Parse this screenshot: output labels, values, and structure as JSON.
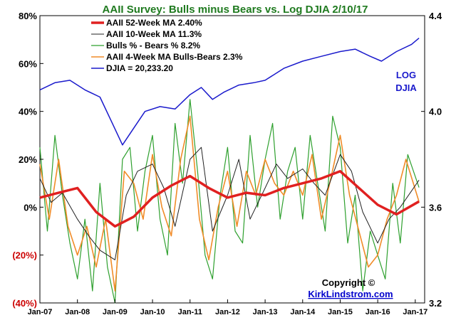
{
  "chart_data": {
    "type": "line",
    "title": "AAII Survey: Bulls minus Bears vs. Log DJIA  2/10/17",
    "x_ticks": [
      "Jan-07",
      "Jan-08",
      "Jan-09",
      "Jan-10",
      "Jan-11",
      "Jan-12",
      "Jan-13",
      "Jan-14",
      "Jan-15",
      "Jan-16",
      "Jan-17"
    ],
    "x_range": [
      2007.0,
      2017.25
    ],
    "y_left": {
      "ticks": [
        "80%",
        "60%",
        "40%",
        "20%",
        "0%",
        "(20%)",
        "(40%)"
      ],
      "values": [
        80,
        60,
        40,
        20,
        0,
        -20,
        -40
      ],
      "ylim": [
        -40,
        80
      ],
      "unit": "%"
    },
    "y_right": {
      "ticks": [
        "4.4",
        "4.0",
        "3.6",
        "3.2"
      ],
      "values": [
        4.4,
        4.0,
        3.6,
        3.2
      ],
      "ylim": [
        3.2,
        4.4
      ],
      "scale": "log"
    },
    "grid": false,
    "legend_placement": "top-left",
    "series": [
      {
        "name": "AAII 52-Week MA 2.40%",
        "color": "#e02020",
        "axis": "left",
        "x": [
          2007.0,
          2007.5,
          2008.0,
          2008.5,
          2009.0,
          2009.5,
          2010.0,
          2010.5,
          2011.0,
          2011.5,
          2012.0,
          2012.5,
          2013.0,
          2013.5,
          2014.0,
          2014.5,
          2015.0,
          2015.5,
          2016.0,
          2016.5,
          2017.1
        ],
        "y": [
          4,
          6,
          8,
          -2,
          -8,
          -4,
          4,
          9,
          13,
          8,
          4,
          6,
          5,
          8,
          10,
          12,
          15,
          8,
          1,
          -3,
          2.4
        ]
      },
      {
        "name": "AAII 10-Week MA 11.3%",
        "color": "#222222",
        "axis": "left",
        "x": [
          2007.0,
          2007.3,
          2007.6,
          2008.0,
          2008.3,
          2008.6,
          2009.0,
          2009.3,
          2009.6,
          2010.0,
          2010.3,
          2010.6,
          2011.0,
          2011.3,
          2011.6,
          2012.0,
          2012.3,
          2012.6,
          2013.0,
          2013.3,
          2013.6,
          2014.0,
          2014.3,
          2014.6,
          2015.0,
          2015.3,
          2015.6,
          2016.0,
          2016.3,
          2016.6,
          2017.1
        ],
        "y": [
          12,
          2,
          6,
          -5,
          -12,
          -18,
          -22,
          5,
          15,
          18,
          8,
          -8,
          20,
          25,
          -10,
          5,
          20,
          -5,
          8,
          18,
          12,
          16,
          10,
          5,
          22,
          15,
          -2,
          -15,
          -5,
          0,
          11.3
        ]
      },
      {
        "name": "Bulls % - Bears % 8.2%",
        "color": "#2ea02e",
        "axis": "left",
        "x": [
          2007.0,
          2007.2,
          2007.4,
          2007.6,
          2007.8,
          2008.0,
          2008.2,
          2008.4,
          2008.6,
          2008.8,
          2009.0,
          2009.2,
          2009.4,
          2009.6,
          2009.8,
          2010.0,
          2010.2,
          2010.4,
          2010.6,
          2010.8,
          2011.0,
          2011.2,
          2011.4,
          2011.6,
          2011.8,
          2012.0,
          2012.2,
          2012.4,
          2012.6,
          2012.8,
          2013.0,
          2013.2,
          2013.4,
          2013.6,
          2013.8,
          2014.0,
          2014.2,
          2014.4,
          2014.6,
          2014.8,
          2015.0,
          2015.2,
          2015.4,
          2015.6,
          2015.8,
          2016.0,
          2016.2,
          2016.4,
          2016.6,
          2016.8,
          2017.1
        ],
        "y": [
          25,
          -10,
          30,
          5,
          -15,
          -30,
          -5,
          -35,
          10,
          -25,
          -40,
          20,
          25,
          -10,
          15,
          30,
          -5,
          -20,
          35,
          10,
          45,
          15,
          -20,
          -30,
          5,
          25,
          -10,
          -15,
          30,
          0,
          20,
          35,
          -5,
          15,
          25,
          -5,
          30,
          10,
          -10,
          38,
          25,
          -15,
          5,
          -35,
          -10,
          -20,
          -30,
          10,
          -15,
          22,
          8.2
        ]
      },
      {
        "name": "AAII 4-Week MA Bulls-Bears 2.3%",
        "color": "#f08c28",
        "axis": "left",
        "x": [
          2007.0,
          2007.25,
          2007.5,
          2007.75,
          2008.0,
          2008.25,
          2008.5,
          2008.75,
          2009.0,
          2009.25,
          2009.5,
          2009.75,
          2010.0,
          2010.25,
          2010.5,
          2010.75,
          2011.0,
          2011.25,
          2011.5,
          2011.75,
          2012.0,
          2012.25,
          2012.5,
          2012.75,
          2013.0,
          2013.25,
          2013.5,
          2013.75,
          2014.0,
          2014.25,
          2014.5,
          2014.75,
          2015.0,
          2015.25,
          2015.5,
          2015.75,
          2016.0,
          2016.25,
          2016.5,
          2016.75,
          2017.1
        ],
        "y": [
          18,
          -5,
          20,
          -8,
          -20,
          -8,
          -25,
          -5,
          -35,
          15,
          10,
          -5,
          22,
          0,
          -12,
          20,
          38,
          -5,
          -22,
          0,
          15,
          -8,
          15,
          5,
          20,
          10,
          5,
          15,
          5,
          22,
          -5,
          12,
          30,
          5,
          -10,
          -25,
          -20,
          -5,
          5,
          20,
          2.3
        ]
      },
      {
        "name": "DJIA =  20,233.20",
        "color": "#1a1acc",
        "axis": "right",
        "x": [
          2007.0,
          2007.4,
          2007.8,
          2008.2,
          2008.6,
          2008.9,
          2009.2,
          2009.5,
          2009.8,
          2010.2,
          2010.6,
          2011.0,
          2011.3,
          2011.6,
          2011.9,
          2012.3,
          2012.7,
          2013.0,
          2013.5,
          2014.0,
          2014.5,
          2015.0,
          2015.4,
          2015.8,
          2016.1,
          2016.5,
          2016.9,
          2017.1
        ],
        "y": [
          4.09,
          4.12,
          4.13,
          4.09,
          4.06,
          3.96,
          3.86,
          3.93,
          4.0,
          4.02,
          4.01,
          4.07,
          4.1,
          4.05,
          4.08,
          4.11,
          4.12,
          4.13,
          4.18,
          4.21,
          4.23,
          4.25,
          4.26,
          4.23,
          4.21,
          4.25,
          4.28,
          4.306
        ]
      }
    ],
    "annotations": {
      "log_label_1": "LOG",
      "log_label_2": "DJIA"
    }
  },
  "footer": {
    "copyright": "Copyright ©",
    "link": "KirkLindstrom.com"
  }
}
